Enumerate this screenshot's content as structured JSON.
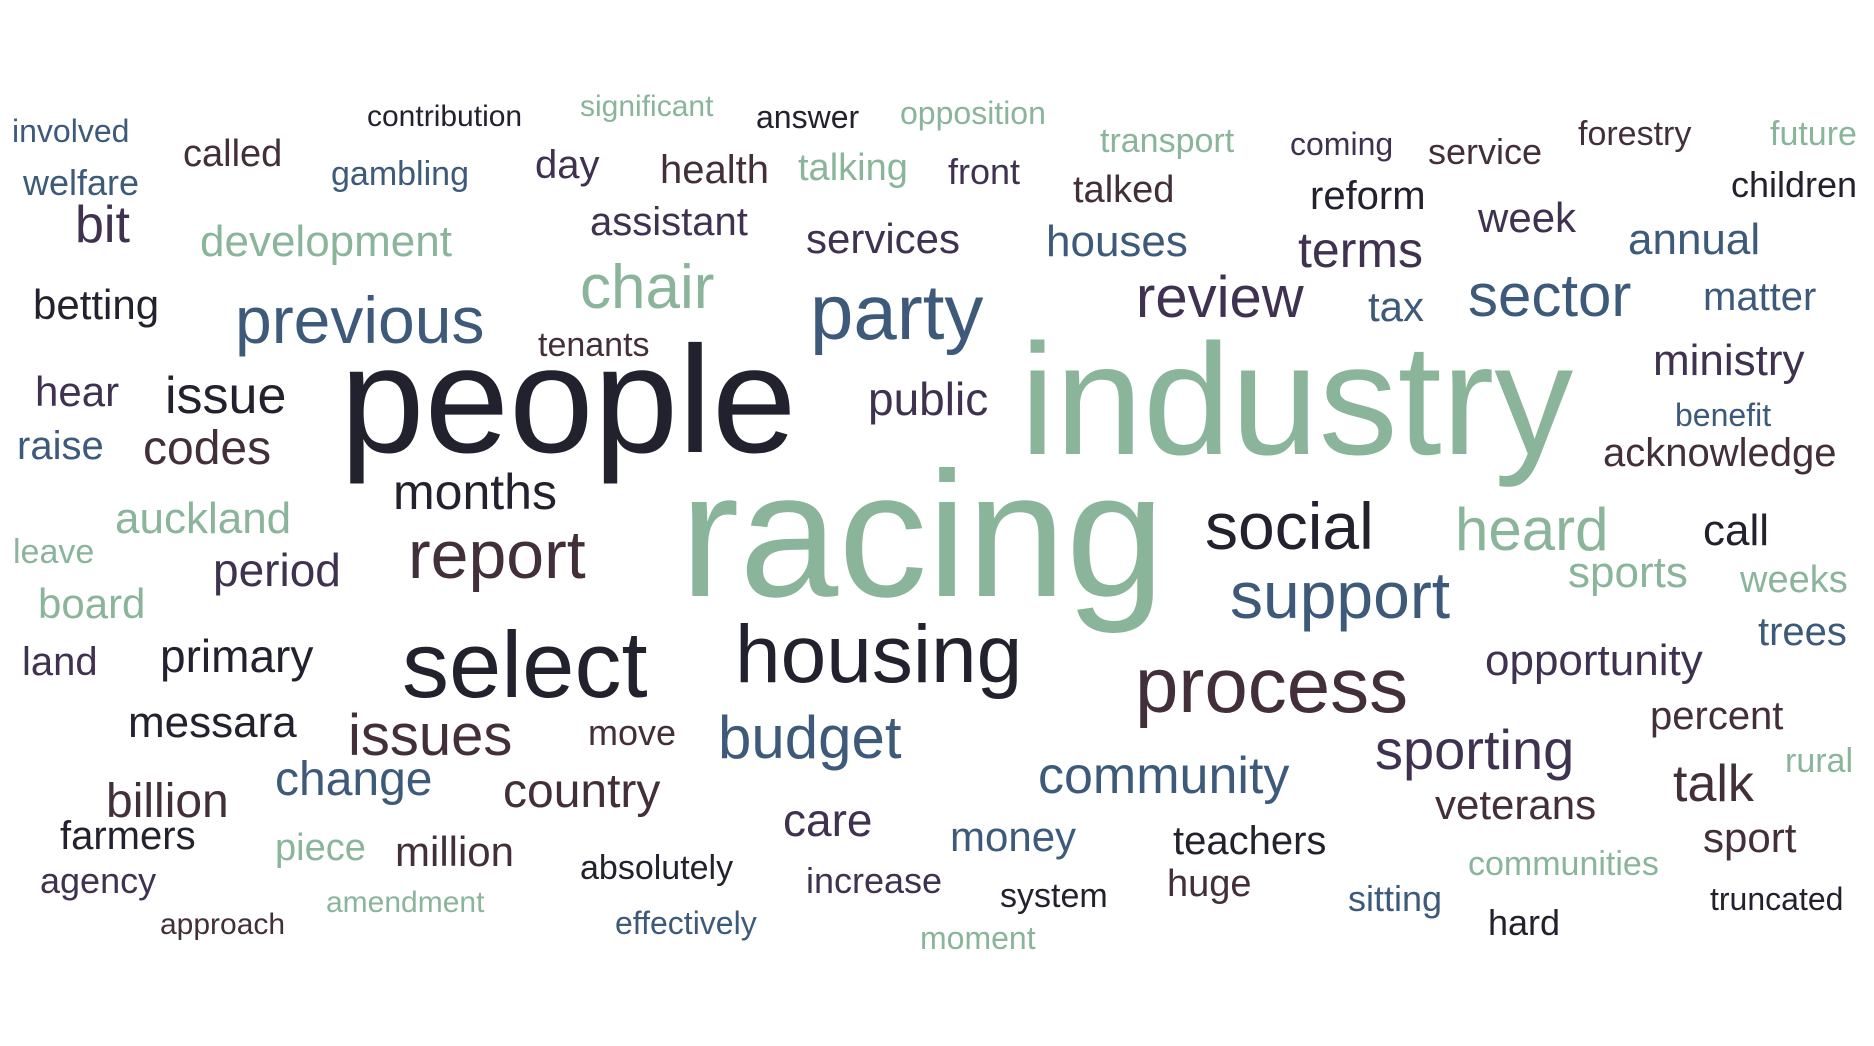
{
  "palette": {
    "c1": "#22222e",
    "c2": "#3f3150",
    "c3": "#432f3a",
    "c4": "#3d5a7a",
    "c5": "#8ab59a"
  },
  "words": [
    {
      "text": "racing",
      "color": "c5"
    },
    {
      "text": "industry",
      "color": "c5"
    },
    {
      "text": "people",
      "color": "c1"
    },
    {
      "text": "select",
      "color": "c1"
    },
    {
      "text": "housing",
      "color": "c1"
    },
    {
      "text": "process",
      "color": "c3"
    },
    {
      "text": "party",
      "color": "c4"
    },
    {
      "text": "previous",
      "color": "c4"
    },
    {
      "text": "support",
      "color": "c4"
    },
    {
      "text": "report",
      "color": "c3"
    },
    {
      "text": "social",
      "color": "c1"
    },
    {
      "text": "sector",
      "color": "c4"
    },
    {
      "text": "review",
      "color": "c2"
    },
    {
      "text": "heard",
      "color": "c5"
    },
    {
      "text": "chair",
      "color": "c5"
    },
    {
      "text": "budget",
      "color": "c4"
    },
    {
      "text": "issues",
      "color": "c3"
    },
    {
      "text": "sporting",
      "color": "c2"
    },
    {
      "text": "community",
      "color": "c4"
    },
    {
      "text": "issue",
      "color": "c1"
    },
    {
      "text": "months",
      "color": "c1"
    },
    {
      "text": "codes",
      "color": "c3"
    },
    {
      "text": "primary",
      "color": "c1"
    },
    {
      "text": "public",
      "color": "c2"
    },
    {
      "text": "period",
      "color": "c2"
    },
    {
      "text": "change",
      "color": "c4"
    },
    {
      "text": "country",
      "color": "c3"
    },
    {
      "text": "billion",
      "color": "c3"
    },
    {
      "text": "messara",
      "color": "c1"
    },
    {
      "text": "opportunity",
      "color": "c2"
    },
    {
      "text": "talk",
      "color": "c3"
    },
    {
      "text": "terms",
      "color": "c2"
    },
    {
      "text": "development",
      "color": "c5"
    },
    {
      "text": "houses",
      "color": "c4"
    },
    {
      "text": "services",
      "color": "c2"
    },
    {
      "text": "ministry",
      "color": "c2"
    },
    {
      "text": "auckland",
      "color": "c5"
    },
    {
      "text": "sports",
      "color": "c5"
    },
    {
      "text": "annual",
      "color": "c4"
    },
    {
      "text": "bit",
      "color": "c2"
    },
    {
      "text": "betting",
      "color": "c1"
    },
    {
      "text": "week",
      "color": "c2"
    },
    {
      "text": "reform",
      "color": "c1"
    },
    {
      "text": "care",
      "color": "c2"
    },
    {
      "text": "money",
      "color": "c4"
    },
    {
      "text": "assistant",
      "color": "c2"
    },
    {
      "text": "call",
      "color": "c1"
    },
    {
      "text": "tax",
      "color": "c4"
    },
    {
      "text": "matter",
      "color": "c4"
    },
    {
      "text": "acknowledge",
      "color": "c3"
    },
    {
      "text": "veterans",
      "color": "c3"
    },
    {
      "text": "board",
      "color": "c5"
    },
    {
      "text": "percent",
      "color": "c3"
    },
    {
      "text": "sport",
      "color": "c3"
    },
    {
      "text": "million",
      "color": "c3"
    },
    {
      "text": "farmers",
      "color": "c1"
    },
    {
      "text": "teachers",
      "color": "c1"
    },
    {
      "text": "trees",
      "color": "c4"
    },
    {
      "text": "weeks",
      "color": "c5"
    },
    {
      "text": "hear",
      "color": "c2"
    },
    {
      "text": "raise",
      "color": "c4"
    },
    {
      "text": "land",
      "color": "c2"
    },
    {
      "text": "health",
      "color": "c3"
    },
    {
      "text": "talking",
      "color": "c5"
    },
    {
      "text": "talked",
      "color": "c3"
    },
    {
      "text": "children",
      "color": "c1"
    },
    {
      "text": "day",
      "color": "c2"
    },
    {
      "text": "called",
      "color": "c3"
    },
    {
      "text": "welfare",
      "color": "c4"
    },
    {
      "text": "piece",
      "color": "c5"
    },
    {
      "text": "huge",
      "color": "c3"
    },
    {
      "text": "front",
      "color": "c2"
    },
    {
      "text": "service",
      "color": "c3"
    },
    {
      "text": "gambling",
      "color": "c4"
    },
    {
      "text": "transport",
      "color": "c5"
    },
    {
      "text": "increase",
      "color": "c2"
    },
    {
      "text": "absolutely",
      "color": "c1"
    },
    {
      "text": "agency",
      "color": "c2"
    },
    {
      "text": "communities",
      "color": "c5"
    },
    {
      "text": "sitting",
      "color": "c4"
    },
    {
      "text": "system",
      "color": "c1"
    },
    {
      "text": "hard",
      "color": "c1"
    },
    {
      "text": "move",
      "color": "c3"
    },
    {
      "text": "tenants",
      "color": "c3"
    },
    {
      "text": "leave",
      "color": "c5"
    },
    {
      "text": "benefit",
      "color": "c4"
    },
    {
      "text": "forestry",
      "color": "c3"
    },
    {
      "text": "future",
      "color": "c5"
    },
    {
      "text": "rural",
      "color": "c5"
    },
    {
      "text": "truncated",
      "color": "c1"
    },
    {
      "text": "involved",
      "color": "c4"
    },
    {
      "text": "coming",
      "color": "c2"
    },
    {
      "text": "answer",
      "color": "c1"
    },
    {
      "text": "opposition",
      "color": "c5"
    },
    {
      "text": "effectively",
      "color": "c4"
    },
    {
      "text": "contribution",
      "color": "c1"
    },
    {
      "text": "significant",
      "color": "c5"
    },
    {
      "text": "amendment",
      "color": "c5"
    },
    {
      "text": "approach",
      "color": "c3"
    },
    {
      "text": "moment",
      "color": "c5"
    }
  ]
}
